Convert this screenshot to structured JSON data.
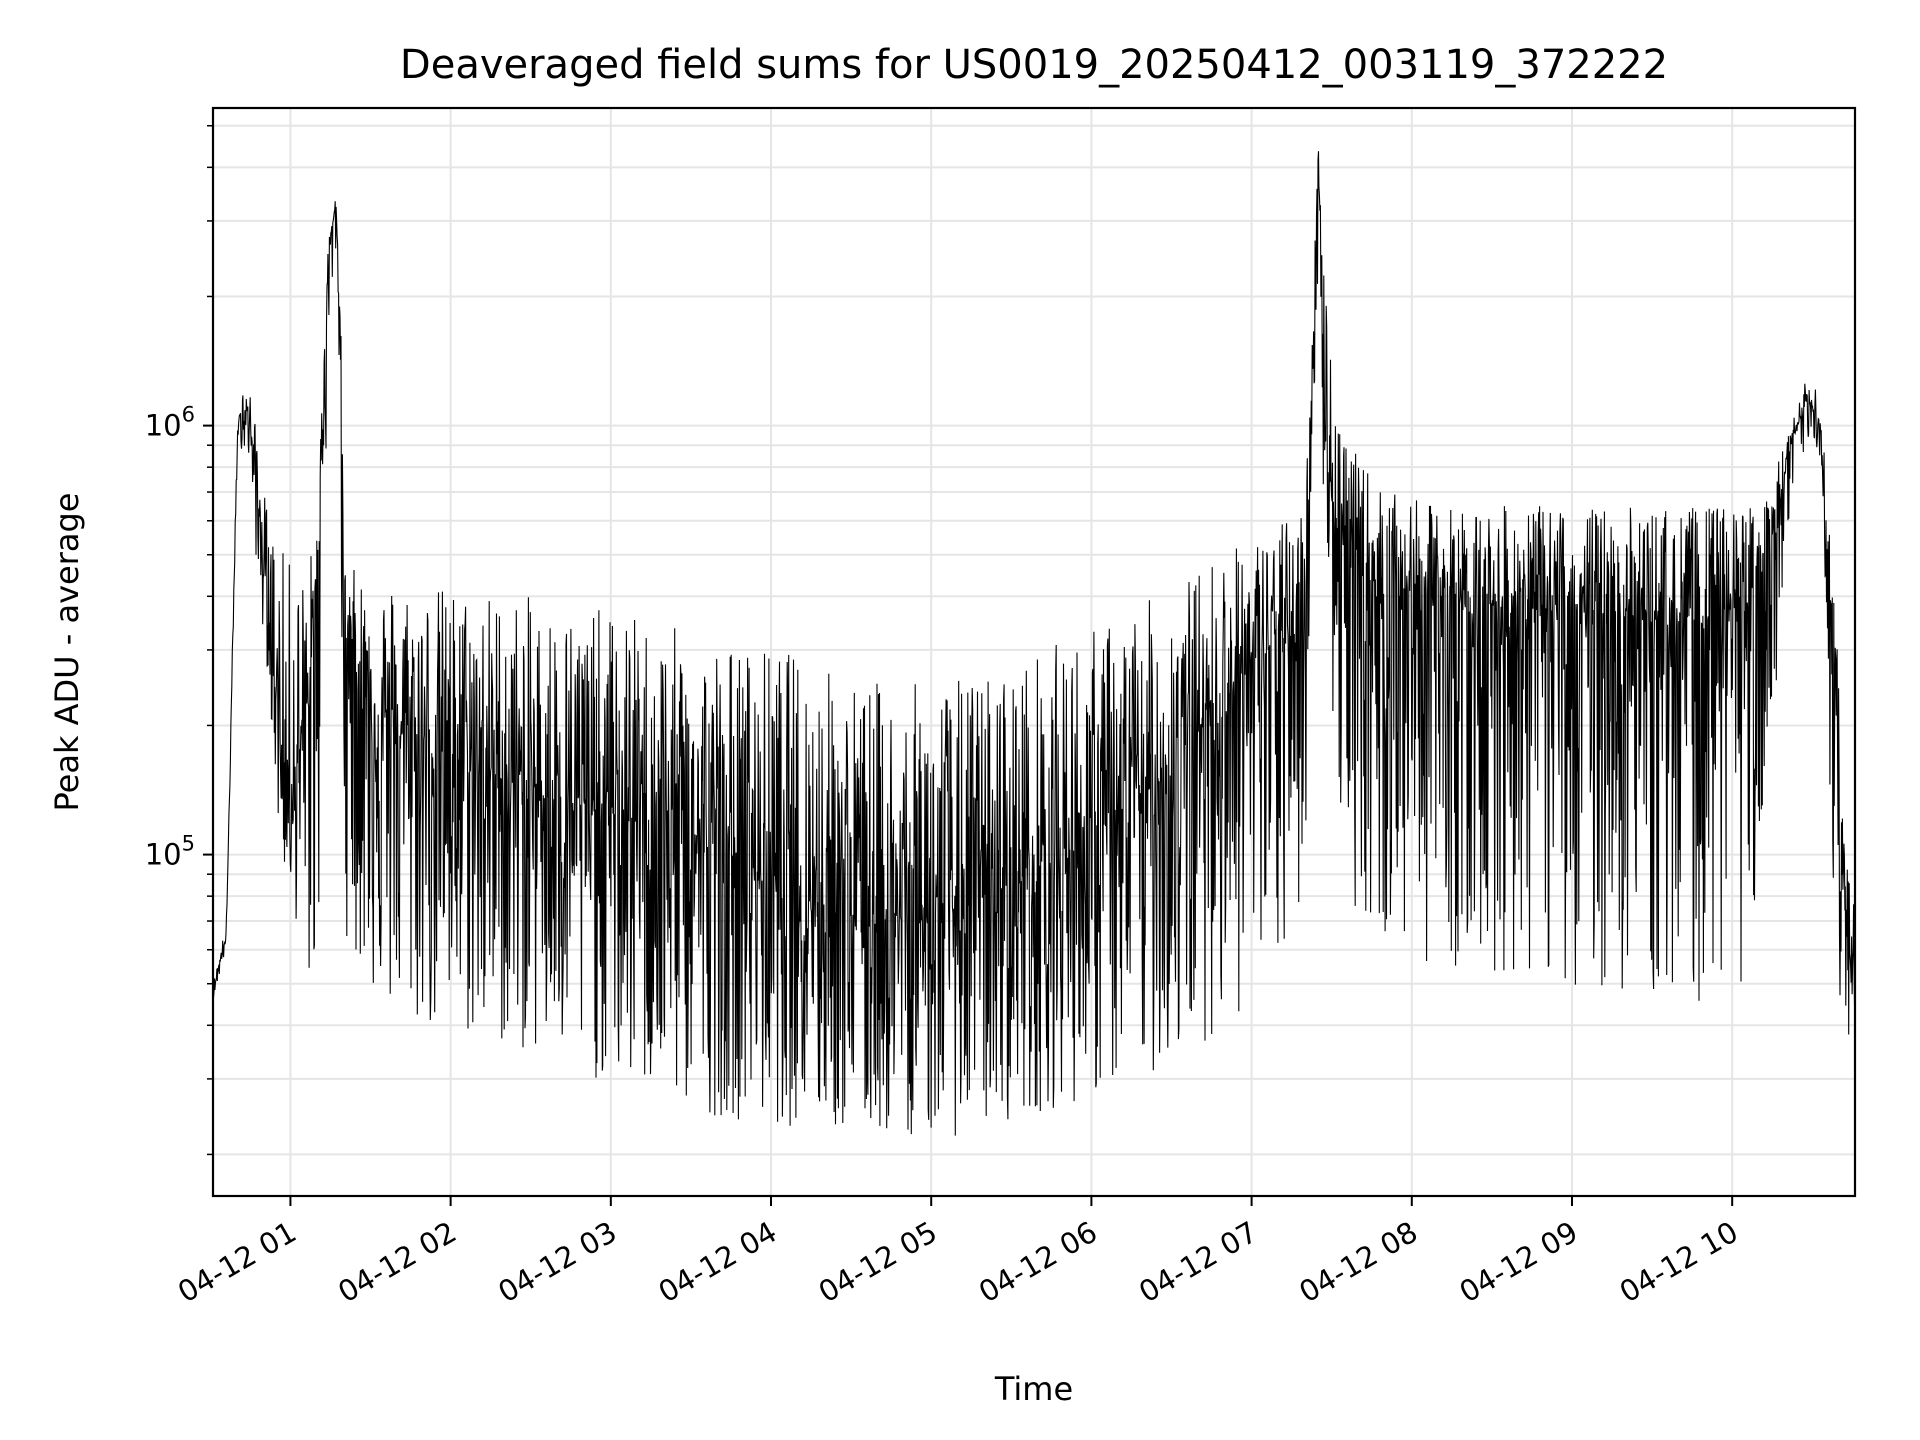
{
  "chart_data": {
    "type": "line",
    "title": "Deaveraged field sums for US0019_20250412_003119_372222",
    "xlabel": "Time",
    "ylabel": "Peak ADU - average",
    "yscale": "log",
    "ylim": [
      16000,
      5500000
    ],
    "xlim": [
      "04-12 00:31",
      "04-12 10:46"
    ],
    "grid": true,
    "line_color": "#000000",
    "grid_color": "#e5e5e5",
    "x_ticks": [
      "04-12 01",
      "04-12 02",
      "04-12 03",
      "04-12 04",
      "04-12 05",
      "04-12 06",
      "04-12 07",
      "04-12 08",
      "04-12 09",
      "04-12 10"
    ],
    "y_ticks": [
      {
        "value": 100000,
        "base": "10",
        "exp": "5"
      },
      {
        "value": 1000000,
        "base": "10",
        "exp": "6"
      }
    ],
    "series": [
      {
        "x": [
          "04-12 00:31",
          "04-12 00:36",
          "04-12 00:40",
          "04-12 00:42",
          "04-12 00:45",
          "04-12 00:48",
          "04-12 00:52",
          "04-12 00:55",
          "04-12 00:58",
          "04-12 01:02",
          "04-12 01:06",
          "04-12 01:10",
          "04-12 01:14",
          "04-12 01:17",
          "04-12 01:19",
          "04-12 01:20",
          "04-12 01:22",
          "04-12 01:25",
          "04-12 01:35",
          "04-12 01:50",
          "04-12 02:10",
          "04-12 02:30",
          "04-12 02:50",
          "04-12 03:10",
          "04-12 03:30",
          "04-12 03:50",
          "04-12 04:10",
          "04-12 04:30",
          "04-12 04:50",
          "04-12 05:10",
          "04-12 05:30",
          "04-12 05:50",
          "04-12 06:10",
          "04-12 06:30",
          "04-12 06:50",
          "04-12 07:05",
          "04-12 07:15",
          "04-12 07:20",
          "04-12 07:23",
          "04-12 07:25",
          "04-12 07:27",
          "04-12 07:30",
          "04-12 07:33",
          "04-12 07:36",
          "04-12 07:40",
          "04-12 07:50",
          "04-12 08:10",
          "04-12 08:30",
          "04-12 08:50",
          "04-12 09:10",
          "04-12 09:30",
          "04-12 09:50",
          "04-12 10:05",
          "04-12 10:15",
          "04-12 10:22",
          "04-12 10:28",
          "04-12 10:33",
          "04-12 10:38",
          "04-12 10:42",
          "04-12 10:46"
        ],
        "y": [
          48000,
          65000,
          900000,
          1150000,
          1000000,
          650000,
          360000,
          230000,
          140000,
          160000,
          200000,
          420000,
          2500000,
          3300000,
          1500000,
          300000,
          350000,
          260000,
          200000,
          180000,
          160000,
          140000,
          130000,
          120000,
          110000,
          95000,
          85000,
          75000,
          70000,
          75000,
          85000,
          100000,
          120000,
          160000,
          240000,
          300000,
          320000,
          350000,
          1600000,
          4400000,
          1500000,
          700000,
          550000,
          480000,
          450000,
          420000,
          400000,
          380000,
          370000,
          360000,
          350000,
          350000,
          380000,
          550000,
          900000,
          1150000,
          1000000,
          300000,
          70000,
          50000
        ],
        "yhi": [
          50000,
          70000,
          950000,
          1250000,
          1200000,
          900000,
          600000,
          550000,
          500000,
          480000,
          460000,
          600000,
          2700000,
          3400000,
          1700000,
          480000,
          470000,
          460000,
          450000,
          430000,
          420000,
          400000,
          380000,
          360000,
          330000,
          310000,
          300000,
          260000,
          250000,
          260000,
          280000,
          320000,
          360000,
          420000,
          520000,
          560000,
          620000,
          700000,
          2000000,
          4500000,
          3000000,
          1500000,
          1200000,
          900000,
          850000,
          700000,
          650000,
          650000,
          650000,
          650000,
          650000,
          650000,
          650000,
          750000,
          1000000,
          1300000,
          1250000,
          400000,
          200000,
          100000
        ],
        "ylo": [
          46000,
          60000,
          800000,
          900000,
          800000,
          400000,
          250000,
          120000,
          90000,
          70000,
          50000,
          40000,
          1500000,
          2500000,
          400000,
          70000,
          60000,
          55000,
          42000,
          38000,
          36000,
          34000,
          30000,
          28000,
          25000,
          24000,
          23000,
          22000,
          22000,
          22000,
          24000,
          26000,
          28000,
          32000,
          40000,
          45000,
          60000,
          80000,
          900000,
          2500000,
          600000,
          200000,
          120000,
          90000,
          70000,
          60000,
          55000,
          52000,
          50000,
          48000,
          45000,
          45000,
          50000,
          150000,
          600000,
          900000,
          800000,
          70000,
          35000,
          36000
        ]
      }
    ]
  }
}
